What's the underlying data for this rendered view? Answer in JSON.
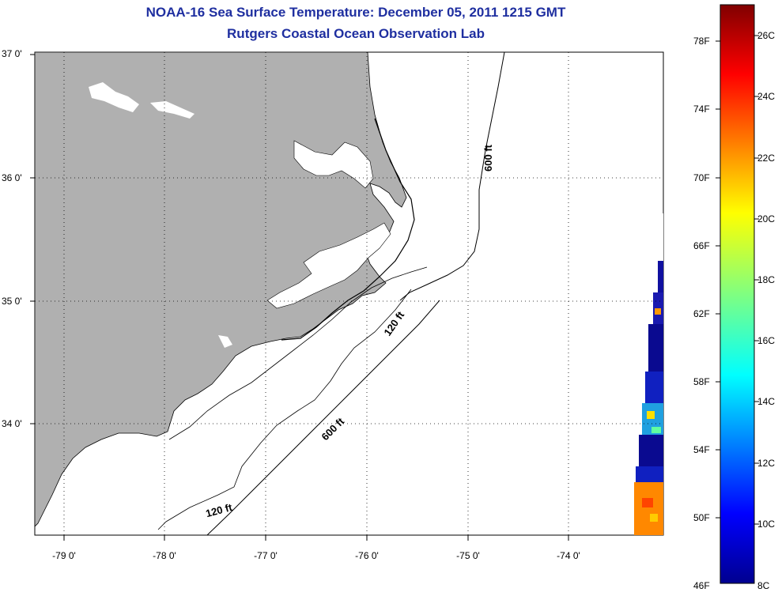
{
  "title": {
    "line1": "NOAA-16 Sea Surface Temperature:  December 05, 2011 1215 GMT",
    "line2": "Rutgers Coastal Ocean Observation Lab"
  },
  "map": {
    "lat_ticks": [
      "37 0'",
      "36 0'",
      "35 0'",
      "34 0'"
    ],
    "lon_ticks": [
      "-79 0'",
      "-78 0'",
      "-77 0'",
      "-76 0'",
      "-75 0'",
      "-74 0'"
    ],
    "contour_labels": [
      "600 ft",
      "120 ft",
      "600 ft",
      "120 ft"
    ]
  },
  "colorbar": {
    "fahrenheit": [
      "78F",
      "74F",
      "70F",
      "66F",
      "62F",
      "58F",
      "54F",
      "50F",
      "46F"
    ],
    "celsius": [
      "26C",
      "24C",
      "22C",
      "20C",
      "18C",
      "16C",
      "14C",
      "12C",
      "10C",
      "8C"
    ]
  }
}
